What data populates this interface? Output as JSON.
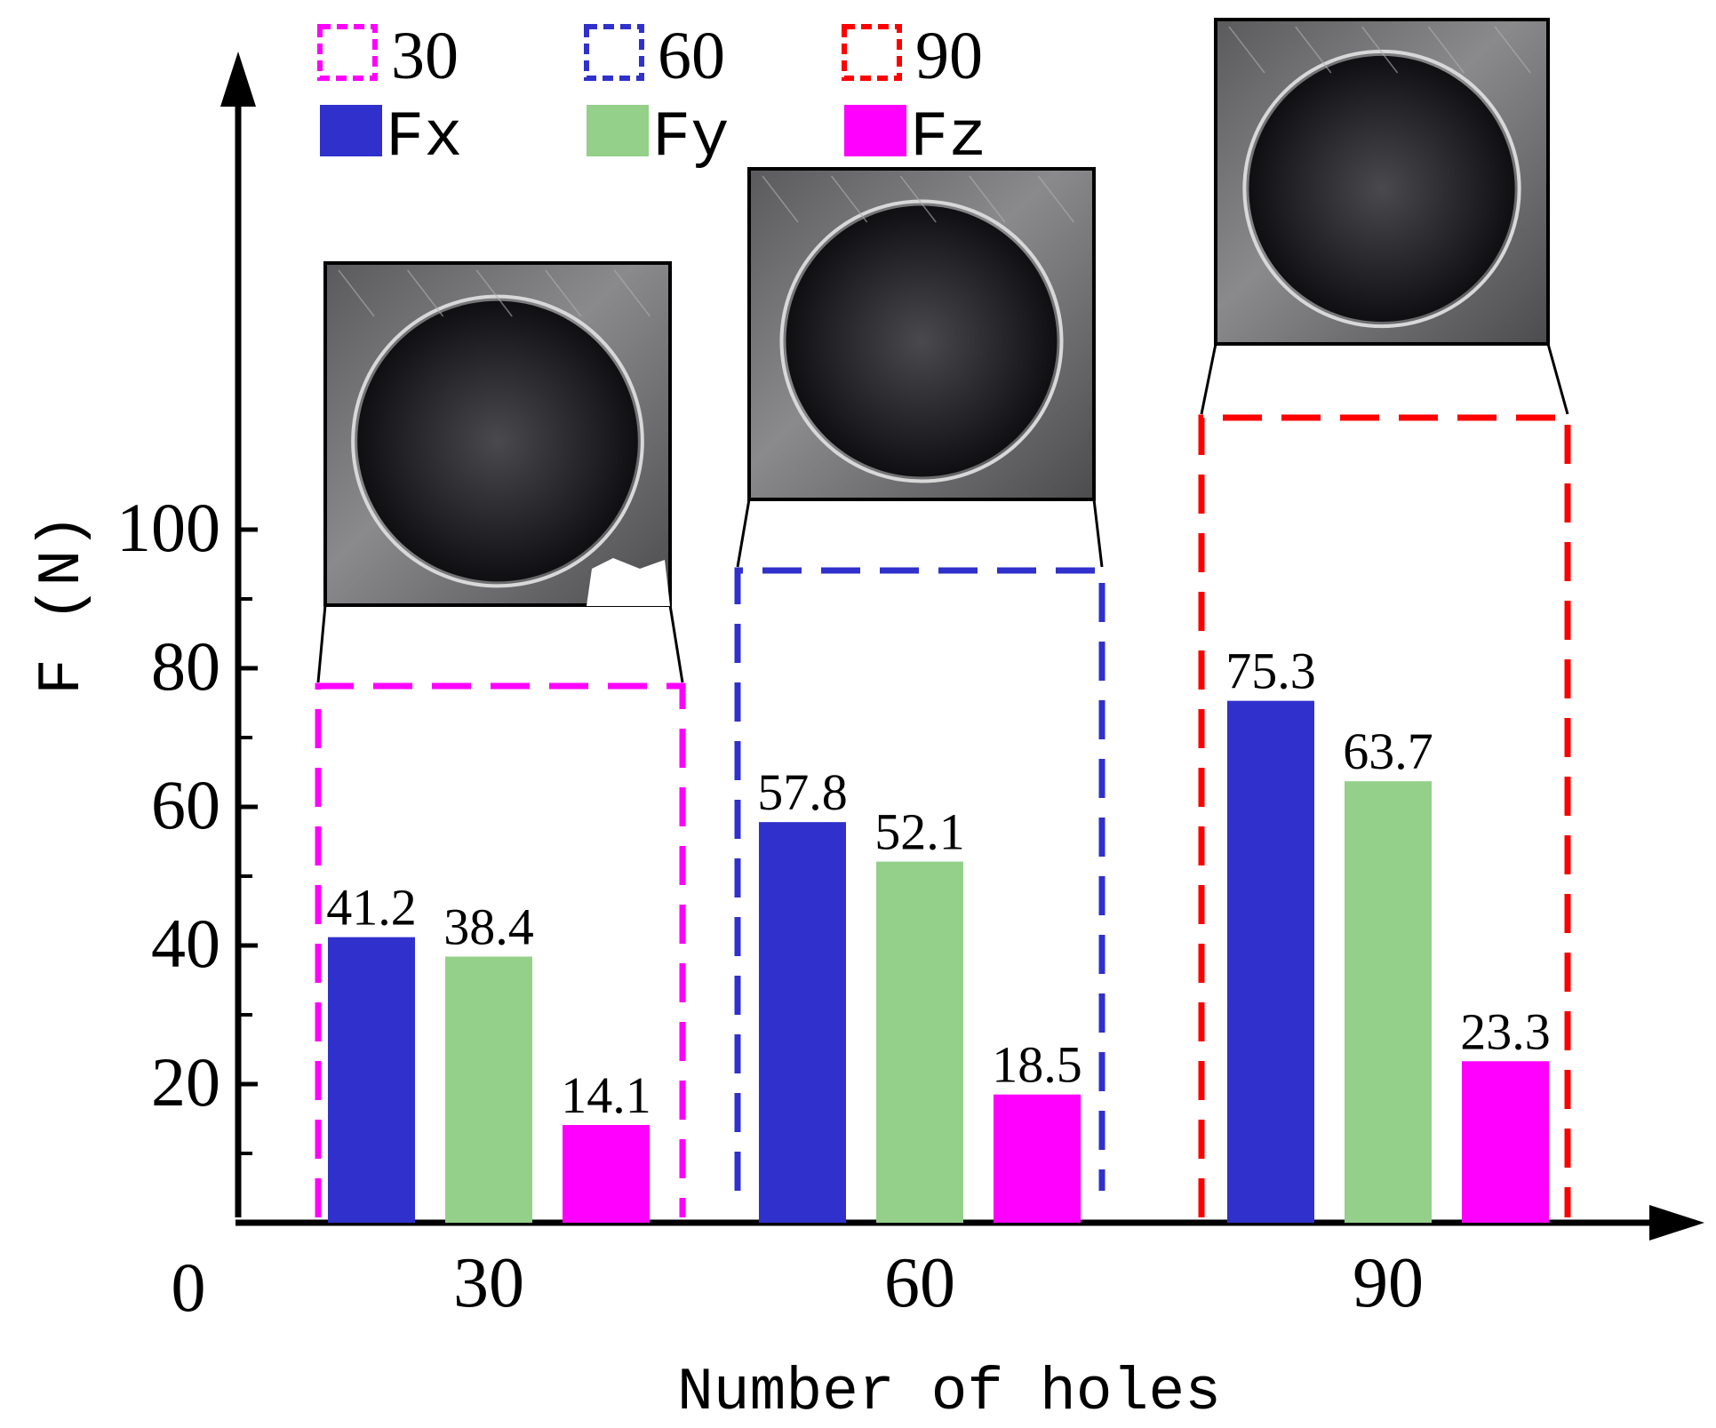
{
  "chart_data": {
    "type": "bar",
    "xlabel": "Number of holes",
    "ylabel": "F (N)",
    "categories": [
      "30",
      "60",
      "90"
    ],
    "ylim": [
      0,
      120
    ],
    "y_ticks": [
      "0",
      "20",
      "40",
      "60",
      "80",
      "100"
    ],
    "grid": false,
    "series": [
      {
        "name": "Fx",
        "color": "#3030cc",
        "values": [
          41.2,
          57.8,
          75.3
        ],
        "labels": [
          "41.2",
          "57.8",
          "75.3"
        ]
      },
      {
        "name": "Fy",
        "color": "#94d08a",
        "values": [
          38.4,
          52.1,
          63.7
        ],
        "labels": [
          "38.4",
          "52.1",
          "63.7"
        ]
      },
      {
        "name": "Fz",
        "color": "#ff00ff",
        "values": [
          14.1,
          18.5,
          23.3
        ],
        "labels": [
          "14.1",
          "18.5",
          "23.3"
        ]
      }
    ],
    "group_boxes": [
      {
        "label": "30",
        "color": "#ff00ff"
      },
      {
        "label": "60",
        "color": "#3030cc"
      },
      {
        "label": "90",
        "color": "#ff0000"
      }
    ],
    "legend_placement": "top-left",
    "insets": [
      {
        "group": "30",
        "icon": "hole-photo-icon"
      },
      {
        "group": "60",
        "icon": "hole-photo-icon"
      },
      {
        "group": "90",
        "icon": "hole-photo-icon"
      }
    ]
  }
}
